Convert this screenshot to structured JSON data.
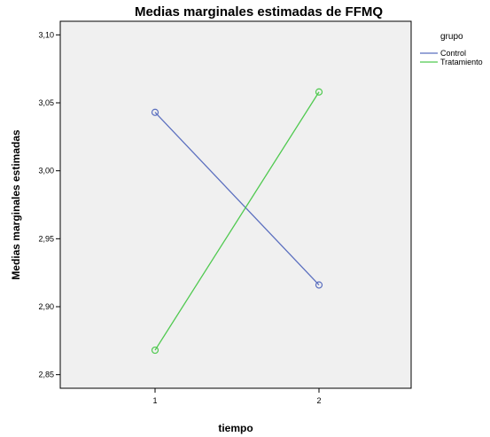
{
  "chart_data": {
    "type": "line",
    "title": "Medias marginales estimadas de FFMQ",
    "xlabel": "tiempo",
    "ylabel": "Medias marginales estimadas",
    "categories": [
      "1",
      "2"
    ],
    "ylim": [
      2.84,
      3.11
    ],
    "yticks": [
      "2,85",
      "2,90",
      "2,95",
      "3,00",
      "3,05",
      "3,10"
    ],
    "ytick_values": [
      2.85,
      2.9,
      2.95,
      3.0,
      3.05,
      3.1
    ],
    "grid": false,
    "legend": {
      "title": "grupo",
      "placement": "right"
    },
    "series": [
      {
        "name": "Control",
        "values": [
          3.043,
          2.916
        ],
        "color": "#5b6fbf"
      },
      {
        "name": "Tratamiento",
        "values": [
          2.868,
          3.058
        ],
        "color": "#4fc94f"
      }
    ]
  },
  "colors": {
    "plot_background": "#f0f0f0",
    "axis": "#000000"
  }
}
